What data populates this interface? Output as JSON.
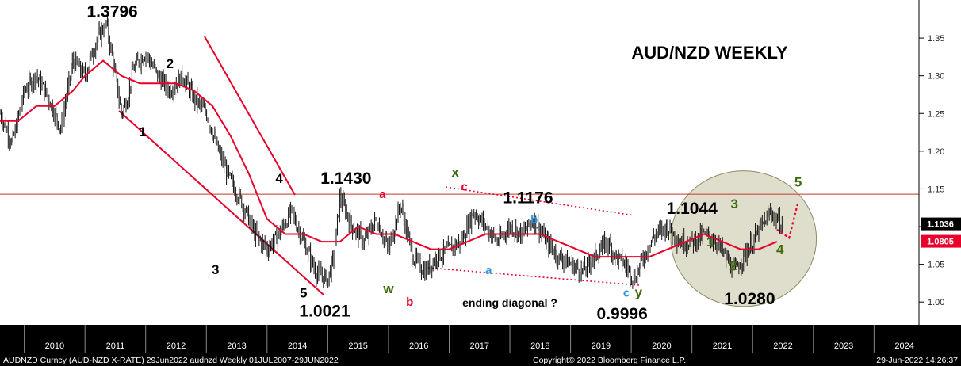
{
  "chart_data": {
    "type": "line",
    "title": "AUD/NZD WEEKLY",
    "x_ticks": [
      "2010",
      "2011",
      "2012",
      "2013",
      "2014",
      "2015",
      "2016",
      "2017",
      "2018",
      "2019",
      "2020",
      "2021",
      "2022",
      "2023",
      "2024"
    ],
    "y_ticks": [
      "1.35",
      "1.30",
      "1.25",
      "1.20",
      "1.15",
      "1.10",
      "1.05",
      "1.00"
    ],
    "ylim": [
      0.975,
      1.39
    ],
    "grid": false,
    "price_series": {
      "name": "AUDNZD",
      "x": [
        2009.6,
        2009.8,
        2010.0,
        2010.2,
        2010.4,
        2010.6,
        2010.8,
        2011.0,
        2011.2,
        2011.35,
        2011.5,
        2011.6,
        2011.7,
        2011.8,
        2012.0,
        2012.2,
        2012.4,
        2012.6,
        2012.8,
        2013.0,
        2013.2,
        2013.4,
        2013.6,
        2013.8,
        2014.0,
        2014.2,
        2014.4,
        2014.6,
        2014.8,
        2015.0,
        2015.1,
        2015.2,
        2015.4,
        2015.6,
        2015.8,
        2016.0,
        2016.2,
        2016.4,
        2016.6,
        2016.8,
        2017.0,
        2017.2,
        2017.4,
        2017.6,
        2017.8,
        2018.0,
        2018.2,
        2018.4,
        2018.6,
        2018.8,
        2019.0,
        2019.2,
        2019.4,
        2019.6,
        2019.75,
        2019.9,
        2020.05,
        2020.2,
        2020.4,
        2020.6,
        2020.8,
        2021.0,
        2021.2,
        2021.4,
        2021.55,
        2021.7,
        2021.85,
        2022.0,
        2022.15,
        2022.3,
        2022.4,
        2022.5
      ],
      "y": [
        1.25,
        1.21,
        1.28,
        1.3,
        1.27,
        1.23,
        1.32,
        1.3,
        1.35,
        1.37,
        1.3,
        1.25,
        1.27,
        1.31,
        1.33,
        1.3,
        1.28,
        1.3,
        1.27,
        1.25,
        1.2,
        1.16,
        1.13,
        1.09,
        1.07,
        1.09,
        1.12,
        1.08,
        1.04,
        1.03,
        1.06,
        1.14,
        1.1,
        1.08,
        1.11,
        1.07,
        1.13,
        1.06,
        1.04,
        1.06,
        1.07,
        1.08,
        1.12,
        1.1,
        1.08,
        1.1,
        1.09,
        1.11,
        1.08,
        1.06,
        1.05,
        1.04,
        1.06,
        1.08,
        1.06,
        1.05,
        1.03,
        1.06,
        1.09,
        1.1,
        1.08,
        1.08,
        1.09,
        1.08,
        1.06,
        1.04,
        1.06,
        1.08,
        1.1,
        1.12,
        1.11,
        1.1
      ]
    },
    "moving_average": {
      "x": [
        2009.6,
        2009.9,
        2010.2,
        2010.5,
        2010.8,
        2011.0,
        2011.3,
        2011.6,
        2011.9,
        2012.2,
        2012.5,
        2012.8,
        2013.1,
        2013.4,
        2013.7,
        2014.0,
        2014.3,
        2014.6,
        2014.9,
        2015.2,
        2015.5,
        2015.8,
        2016.1,
        2016.4,
        2016.7,
        2017.0,
        2017.3,
        2017.6,
        2017.9,
        2018.2,
        2018.5,
        2018.8,
        2019.1,
        2019.4,
        2019.7,
        2020.0,
        2020.3,
        2020.6,
        2020.9,
        2021.2,
        2021.5,
        2021.8,
        2022.1,
        2022.4
      ],
      "y": [
        1.24,
        1.24,
        1.26,
        1.26,
        1.28,
        1.3,
        1.32,
        1.3,
        1.29,
        1.29,
        1.29,
        1.28,
        1.26,
        1.22,
        1.17,
        1.11,
        1.09,
        1.09,
        1.08,
        1.08,
        1.1,
        1.09,
        1.09,
        1.08,
        1.07,
        1.07,
        1.08,
        1.09,
        1.09,
        1.09,
        1.09,
        1.08,
        1.07,
        1.06,
        1.06,
        1.06,
        1.06,
        1.07,
        1.08,
        1.09,
        1.08,
        1.07,
        1.07,
        1.08
      ]
    },
    "price_labels": [
      {
        "text": "1.1036",
        "y": 1.1036,
        "color": "#000000"
      },
      {
        "text": "1.0805",
        "y": 1.0805,
        "color": "#e8002a"
      }
    ],
    "annotations": [
      {
        "text": "1.3796",
        "x": 2011.45,
        "y": 1.378,
        "size": 21,
        "color": "#000000"
      },
      {
        "text": "2",
        "x": 2012.4,
        "y": 1.31,
        "size": 17,
        "color": "#000000"
      },
      {
        "text": "1",
        "x": 2011.95,
        "y": 1.22,
        "size": 17,
        "color": "#000000"
      },
      {
        "text": "4",
        "x": 2014.2,
        "y": 1.158,
        "size": 17,
        "color": "#000000"
      },
      {
        "text": "1.1430",
        "x": 2015.3,
        "y": 1.157,
        "size": 21,
        "color": "#000000"
      },
      {
        "text": "a",
        "x": 2015.9,
        "y": 1.138,
        "size": 15,
        "color": "#e8002a"
      },
      {
        "text": "x",
        "x": 2017.1,
        "y": 1.166,
        "size": 17,
        "color": "#3d6b0a"
      },
      {
        "text": "c",
        "x": 2017.25,
        "y": 1.148,
        "size": 15,
        "color": "#e8002a"
      },
      {
        "text": "1.1176",
        "x": 2018.3,
        "y": 1.131,
        "size": 21,
        "color": "#000000"
      },
      {
        "text": "b",
        "x": 2018.4,
        "y": 1.104,
        "size": 15,
        "color": "#2e95e0"
      },
      {
        "text": "1.1044",
        "x": 2021.0,
        "y": 1.117,
        "size": 21,
        "color": "#000000"
      },
      {
        "text": "3",
        "x": 2021.7,
        "y": 1.124,
        "size": 17,
        "color": "#3d6b0a"
      },
      {
        "text": "5",
        "x": 2022.75,
        "y": 1.153,
        "size": 17,
        "color": "#3d6b0a"
      },
      {
        "text": "1",
        "x": 2021.3,
        "y": 1.074,
        "size": 17,
        "color": "#3d6b0a"
      },
      {
        "text": "4",
        "x": 2022.45,
        "y": 1.064,
        "size": 17,
        "color": "#3d6b0a"
      },
      {
        "text": "2",
        "x": 2021.68,
        "y": 1.042,
        "size": 17,
        "color": "#3d6b0a"
      },
      {
        "text": "a",
        "x": 2017.65,
        "y": 1.037,
        "size": 15,
        "color": "#2e95e0"
      },
      {
        "text": "3",
        "x": 2013.15,
        "y": 1.037,
        "size": 17,
        "color": "#000000"
      },
      {
        "text": "5",
        "x": 2014.6,
        "y": 1.006,
        "size": 17,
        "color": "#000000"
      },
      {
        "text": "w",
        "x": 2016.0,
        "y": 1.012,
        "size": 17,
        "color": "#3d6b0a"
      },
      {
        "text": "b",
        "x": 2016.35,
        "y": 0.995,
        "size": 15,
        "color": "#e8002a"
      },
      {
        "text": "ending diagonal ?",
        "x": 2018.0,
        "y": 0.994,
        "size": 14,
        "color": "#000000"
      },
      {
        "text": "c",
        "x": 2019.92,
        "y": 1.007,
        "size": 15,
        "color": "#2e95e0"
      },
      {
        "text": "y",
        "x": 2020.12,
        "y": 1.007,
        "size": 17,
        "color": "#3d6b0a"
      },
      {
        "text": "1.0021",
        "x": 2014.95,
        "y": 0.981,
        "size": 21,
        "color": "#000000"
      },
      {
        "text": "0.9996",
        "x": 2019.85,
        "y": 0.977,
        "size": 21,
        "color": "#000000"
      },
      {
        "text": "1.0280",
        "x": 2021.95,
        "y": 0.997,
        "size": 21,
        "color": "#000000"
      }
    ],
    "resistance_level": 1.143,
    "projection": {
      "x": [
        2022.4,
        2022.6,
        2022.75
      ],
      "y": [
        1.096,
        1.085,
        1.133
      ]
    },
    "target_zone": {
      "cx": 2021.85,
      "cy": 1.084,
      "rx": 1.2,
      "ry": 0.09
    }
  },
  "footer": {
    "left": "AUDNZD Curncy (AUD-NZD X-RATE) 29Jun2022 audnzd  Weekly 01JUL2007-29JUN2022",
    "center": "Copyright© 2022 Bloomberg Finance L.P.",
    "right": "29-Jun-2022 14:26:37"
  }
}
